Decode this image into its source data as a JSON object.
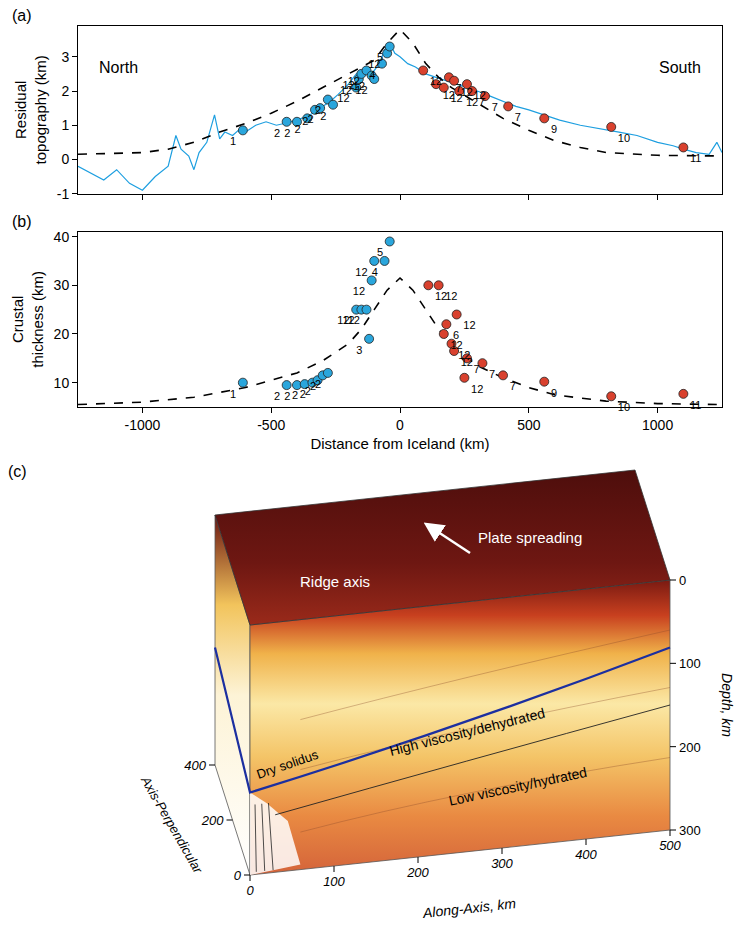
{
  "chart_data": [
    {
      "panel": "(a)",
      "type": "scatter",
      "y_label": "Residual topography (km)",
      "xlim": [
        -1250,
        1250
      ],
      "xticks": [
        -1000,
        -500,
        0,
        500,
        1000
      ],
      "ylim": [
        -1,
        3.9
      ],
      "yticks": [
        -1,
        0,
        1,
        2,
        3
      ],
      "tick_labels": "y",
      "grid": false,
      "annotations": [
        "North",
        "South"
      ],
      "series": [
        {
          "type": "line",
          "color": "#1e9fe0",
          "line_style": "solid",
          "x": [
            -1250,
            -1200,
            -1150,
            -1100,
            -1050,
            -1000,
            -950,
            -900,
            -870,
            -850,
            -820,
            -800,
            -780,
            -750,
            -720,
            -700,
            -680,
            -650,
            -620,
            -600,
            -560,
            -520,
            -480,
            -450,
            -400,
            -350,
            -300,
            -270,
            -240,
            -200,
            -170,
            -150,
            -120,
            -100,
            -80,
            -60,
            -40,
            -20,
            0,
            30,
            60,
            100,
            140,
            180,
            220,
            260,
            300,
            350,
            400,
            450,
            500,
            560,
            620,
            700,
            780,
            850,
            920,
            1000,
            1060,
            1100,
            1150,
            1200,
            1230,
            1250
          ],
          "values": [
            -0.2,
            -0.4,
            -0.6,
            -0.3,
            -0.7,
            -0.9,
            -0.5,
            -0.2,
            0.7,
            0.3,
            0.1,
            -0.3,
            0.2,
            0.5,
            1.3,
            0.6,
            0.8,
            0.7,
            0.9,
            0.8,
            1.0,
            1.1,
            1.0,
            1.05,
            1.15,
            1.3,
            1.55,
            1.7,
            1.9,
            2.2,
            2.5,
            2.6,
            2.5,
            2.6,
            2.8,
            3.2,
            3.4,
            3.1,
            3.0,
            2.8,
            2.7,
            2.5,
            2.4,
            2.3,
            2.2,
            2.1,
            2.0,
            1.85,
            1.7,
            1.55,
            1.45,
            1.3,
            1.15,
            1.0,
            0.9,
            0.8,
            0.7,
            0.5,
            0.4,
            0.3,
            0.2,
            0.15,
            0.5,
            0.2
          ]
        },
        {
          "type": "line",
          "color": "#000000",
          "line_style": "dashed",
          "x": [
            -1250,
            -1000,
            -900,
            -800,
            -700,
            -600,
            -500,
            -400,
            -300,
            -200,
            -150,
            -100,
            -50,
            0,
            50,
            100,
            150,
            200,
            300,
            400,
            500,
            600,
            700,
            800,
            1000,
            1250
          ],
          "values": [
            0.15,
            0.2,
            0.3,
            0.5,
            0.8,
            1.05,
            1.35,
            1.7,
            2.1,
            2.5,
            2.7,
            2.9,
            3.4,
            3.8,
            3.4,
            2.8,
            2.4,
            2.1,
            1.65,
            1.2,
            0.85,
            0.55,
            0.35,
            0.2,
            0.12,
            0.1
          ]
        },
        {
          "type": "scatter",
          "color": "#2aa6dc",
          "marker": "circle",
          "x": [
            -610,
            -440,
            -400,
            -360,
            -330,
            -310,
            -280,
            -260,
            -170,
            -160,
            -150,
            -130,
            -110,
            -100,
            -70,
            -50,
            -40
          ],
          "values": [
            0.85,
            1.1,
            1.1,
            1.2,
            1.45,
            1.5,
            1.75,
            1.6,
            2.1,
            2.35,
            2.5,
            2.6,
            2.45,
            2.35,
            2.8,
            3.1,
            3.3
          ],
          "point_labels": [
            "1",
            "2",
            "2",
            "2",
            "2",
            "2",
            "2",
            "2",
            "12",
            "12",
            "12",
            "12",
            "12",
            "12",
            "4",
            "12",
            "5"
          ]
        },
        {
          "type": "scatter",
          "color": "#d9412e",
          "marker": "circle",
          "x": [
            90,
            140,
            170,
            190,
            210,
            230,
            260,
            280,
            330,
            420,
            560,
            820,
            1100
          ],
          "values": [
            2.6,
            2.2,
            2.1,
            2.4,
            2.3,
            2.0,
            2.2,
            2.0,
            1.85,
            1.55,
            1.2,
            0.95,
            0.35
          ],
          "point_labels": [
            "12",
            "12",
            "12",
            "7",
            "12",
            "12",
            "12",
            "7",
            "7",
            "7",
            "9",
            "10",
            "11"
          ]
        }
      ]
    },
    {
      "panel": "(b)",
      "type": "scatter",
      "y_label": "Crustal thickness (km)",
      "x_label": "Distance from Iceland (km)",
      "xlim": [
        -1250,
        1250
      ],
      "xticks": [
        -1000,
        -500,
        0,
        500,
        1000
      ],
      "ylim": [
        5,
        41
      ],
      "yticks": [
        10,
        20,
        30,
        40
      ],
      "tick_labels": true,
      "grid": false,
      "series": [
        {
          "type": "line",
          "color": "#000000",
          "line_style": "dashed",
          "x": [
            -1250,
            -1000,
            -800,
            -600,
            -400,
            -300,
            -200,
            -150,
            -100,
            -50,
            0,
            50,
            100,
            150,
            200,
            300,
            400,
            500,
            600,
            800,
            1000,
            1250
          ],
          "values": [
            5.5,
            6,
            7,
            9,
            12,
            14.5,
            18,
            21,
            25,
            29,
            31.5,
            29,
            25,
            21,
            17.5,
            13.5,
            11,
            9,
            7.5,
            6.2,
            5.7,
            5.5
          ]
        },
        {
          "type": "scatter",
          "color": "#2aa6dc",
          "marker": "circle",
          "x": [
            -610,
            -440,
            -400,
            -370,
            -340,
            -320,
            -300,
            -280,
            -170,
            -150,
            -130,
            -120,
            -110,
            -100,
            -60,
            -40
          ],
          "values": [
            10,
            9.5,
            9.5,
            9.7,
            10,
            10.5,
            11.5,
            12,
            25,
            25,
            25,
            19,
            31,
            35,
            35,
            39
          ],
          "point_labels": [
            "1",
            "2",
            "2",
            "2",
            "2",
            "2",
            "2",
            "2",
            "12",
            "12",
            "12",
            "3",
            "12",
            "12",
            "4",
            "5"
          ]
        },
        {
          "type": "scatter",
          "color": "#d9412e",
          "marker": "circle",
          "x": [
            110,
            150,
            220,
            180,
            170,
            200,
            210,
            260,
            320,
            250,
            400,
            560,
            820,
            1100
          ],
          "values": [
            30,
            30,
            24,
            22,
            20,
            18,
            16.5,
            15,
            14,
            11,
            11.5,
            10.2,
            7.2,
            7.7
          ],
          "point_labels": [
            "12",
            "12",
            "12",
            "6",
            "12",
            "12",
            "12",
            "7",
            "7",
            "12",
            "7",
            "9",
            "10",
            "11"
          ]
        }
      ]
    }
  ],
  "diagram": {
    "label": "(c)",
    "top_labels": {
      "spreading": "Plate spreading",
      "ridge": "Ridge axis"
    },
    "layers": {
      "solidus": "Dry solidus",
      "upper": "High viscosity/dehydrated",
      "lower": "Low viscosity/hydrated"
    },
    "depth_axis": {
      "title": "Depth, km",
      "ticks": [
        0,
        100,
        200,
        300
      ]
    },
    "along_axis": {
      "title": "Along-Axis, km",
      "ticks": [
        0,
        100,
        200,
        300,
        400,
        500
      ]
    },
    "perp_axis": {
      "title": "Axis-Perpendicular",
      "ticks": [
        0,
        200,
        400
      ]
    }
  }
}
